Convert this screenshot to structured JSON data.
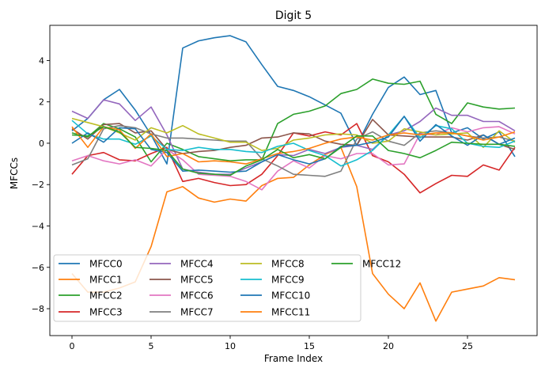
{
  "chart_data": {
    "type": "line",
    "title": "Digit 5",
    "xlabel": "Frame Index",
    "ylabel": "MFCCs",
    "xlim": [
      -1.4,
      29.4
    ],
    "ylim": [
      -9.3,
      5.7
    ],
    "xticks": [
      0,
      5,
      10,
      15,
      20,
      25
    ],
    "yticks": [
      -8,
      -6,
      -4,
      -2,
      0,
      2,
      4
    ],
    "grid": false,
    "legend": "lower-left",
    "x": [
      0,
      1,
      2,
      3,
      4,
      5,
      6,
      7,
      8,
      9,
      10,
      11,
      12,
      13,
      14,
      15,
      16,
      17,
      18,
      19,
      20,
      21,
      22,
      23,
      24,
      25,
      26,
      27,
      28
    ],
    "series": [
      {
        "name": "MFCC0",
        "color": "#1f77b4",
        "values": [
          0.6,
          1.2,
          2.1,
          2.6,
          1.6,
          0.4,
          -1.0,
          4.6,
          4.95,
          5.1,
          5.2,
          4.9,
          3.8,
          2.75,
          2.55,
          2.25,
          1.85,
          1.45,
          -0.1,
          1.4,
          2.7,
          3.2,
          2.35,
          2.55,
          0.5,
          0.75,
          0.2,
          0.55,
          -0.65
        ]
      },
      {
        "name": "MFCC1",
        "color": "#ff7f0e",
        "values": [
          -6.3,
          -7.2,
          -7.2,
          -7.0,
          -6.7,
          -5.0,
          -2.35,
          -2.1,
          -2.65,
          -2.85,
          -2.7,
          -2.8,
          -2.05,
          -1.7,
          -1.65,
          -1.05,
          -0.55,
          -0.2,
          -2.1,
          -6.3,
          -7.3,
          -8.0,
          -6.75,
          -8.6,
          -7.2,
          -7.05,
          -6.9,
          -6.5,
          -6.6
        ]
      },
      {
        "name": "MFCC2",
        "color": "#2ca02c",
        "values": [
          0.5,
          0.3,
          0.95,
          0.7,
          0.3,
          -0.9,
          0.0,
          -0.3,
          -0.65,
          -0.75,
          -0.85,
          -0.8,
          -0.8,
          0.95,
          1.4,
          1.55,
          1.8,
          2.4,
          2.6,
          3.1,
          2.9,
          2.85,
          3.0,
          1.4,
          0.95,
          1.95,
          1.75,
          1.65,
          1.7
        ]
      },
      {
        "name": "MFCC3",
        "color": "#d62728",
        "values": [
          -1.5,
          -0.6,
          -0.45,
          -0.8,
          -0.85,
          -0.5,
          -0.2,
          -1.85,
          -1.7,
          -1.9,
          -2.05,
          -2.0,
          -1.5,
          -0.6,
          0.5,
          0.35,
          0.55,
          0.4,
          0.95,
          -0.6,
          -0.9,
          -1.5,
          -2.4,
          -1.95,
          -1.55,
          -1.6,
          -1.05,
          -1.3,
          -0.2
        ]
      },
      {
        "name": "MFCC4",
        "color": "#9467bd",
        "values": [
          1.55,
          1.2,
          2.1,
          1.9,
          1.1,
          1.75,
          0.4,
          -1.25,
          -1.4,
          -1.5,
          -1.5,
          -1.2,
          -0.9,
          -0.55,
          -0.6,
          -0.3,
          -0.5,
          -0.2,
          -0.1,
          -0.3,
          0.4,
          0.6,
          1.05,
          1.7,
          1.35,
          1.35,
          1.05,
          1.05,
          0.6
        ]
      },
      {
        "name": "MFCC5",
        "color": "#8c564b",
        "values": [
          0.7,
          0.2,
          0.9,
          0.95,
          0.5,
          0.6,
          -0.3,
          -0.5,
          -0.4,
          -0.35,
          -0.2,
          -0.1,
          0.25,
          0.3,
          0.5,
          0.45,
          0.1,
          -0.05,
          -0.1,
          1.15,
          0.4,
          0.35,
          0.3,
          0.3,
          0.3,
          0.15,
          0.4,
          -0.05,
          -0.3
        ]
      },
      {
        "name": "MFCC6",
        "color": "#e377c2",
        "values": [
          -0.85,
          -0.6,
          -0.85,
          -1.0,
          -0.8,
          -1.1,
          -0.3,
          -0.8,
          -1.5,
          -1.55,
          -1.6,
          -1.85,
          -2.25,
          -1.35,
          -0.85,
          -1.2,
          -0.6,
          -0.75,
          -0.5,
          -0.5,
          -1.05,
          -1.0,
          0.45,
          0.4,
          0.75,
          0.55,
          0.75,
          0.8,
          0.45
        ]
      },
      {
        "name": "MFCC7",
        "color": "#7f7f7f",
        "values": [
          -1.05,
          -0.75,
          0.7,
          0.85,
          0.75,
          0.45,
          0.25,
          0.25,
          0.2,
          0.15,
          0.1,
          0.1,
          -0.75,
          -1.1,
          -1.5,
          -1.55,
          -1.6,
          -1.35,
          0.2,
          0.55,
          0.1,
          -0.1,
          0.5,
          0.6,
          0.5,
          0.35,
          0.25,
          0.3,
          0.1
        ]
      },
      {
        "name": "MFCC8",
        "color": "#bcbd22",
        "values": [
          1.2,
          1.0,
          0.8,
          0.5,
          0.15,
          0.75,
          0.5,
          0.85,
          0.45,
          0.25,
          0.05,
          0.05,
          -0.35,
          -0.25,
          0.15,
          0.25,
          0.4,
          0.45,
          0.4,
          0.0,
          0.1,
          0.7,
          0.55,
          0.4,
          0.45,
          0.5,
          -0.2,
          0.6,
          0.05
        ]
      },
      {
        "name": "MFCC9",
        "color": "#17becf",
        "values": [
          1.1,
          0.45,
          0.2,
          0.2,
          -0.05,
          0.35,
          -0.3,
          -0.35,
          -0.2,
          -0.3,
          -0.3,
          -0.4,
          -0.45,
          -0.15,
          0.0,
          -0.35,
          -0.6,
          -1.1,
          -0.8,
          -0.35,
          0.4,
          1.3,
          0.25,
          0.85,
          0.7,
          0.0,
          -0.15,
          -0.2,
          0.1
        ]
      },
      {
        "name": "MFCC10",
        "color": "#1f77b4",
        "values": [
          0.0,
          0.5,
          0.05,
          0.75,
          0.7,
          -0.3,
          -0.45,
          -1.35,
          -1.3,
          -1.35,
          -1.4,
          -1.35,
          -0.9,
          -0.55,
          -0.8,
          -1.0,
          -0.75,
          -0.15,
          -0.1,
          0.05,
          0.3,
          1.3,
          0.1,
          0.9,
          0.35,
          -0.1,
          0.4,
          -0.05,
          0.25
        ]
      },
      {
        "name": "MFCC11",
        "color": "#ff7f0e",
        "values": [
          0.8,
          -0.2,
          0.8,
          0.65,
          -0.25,
          0.45,
          -0.65,
          -0.5,
          -0.9,
          -0.85,
          -0.9,
          -1.0,
          -0.75,
          -0.5,
          -0.4,
          -0.25,
          0.0,
          0.2,
          0.3,
          0.15,
          0.4,
          0.5,
          0.4,
          0.5,
          0.5,
          0.35,
          0.15,
          0.3,
          0.55
        ]
      },
      {
        "name": "MFCC12",
        "color": "#2ca02c",
        "values": [
          0.4,
          0.35,
          0.8,
          0.55,
          -0.2,
          -0.25,
          -0.35,
          -1.25,
          -1.45,
          -1.5,
          -1.55,
          -1.1,
          -0.8,
          -0.3,
          -0.7,
          -0.55,
          -0.75,
          -0.2,
          0.35,
          0.35,
          -0.35,
          -0.5,
          -0.7,
          -0.35,
          0.05,
          0.0,
          -0.05,
          -0.05,
          -0.15
        ]
      }
    ]
  }
}
